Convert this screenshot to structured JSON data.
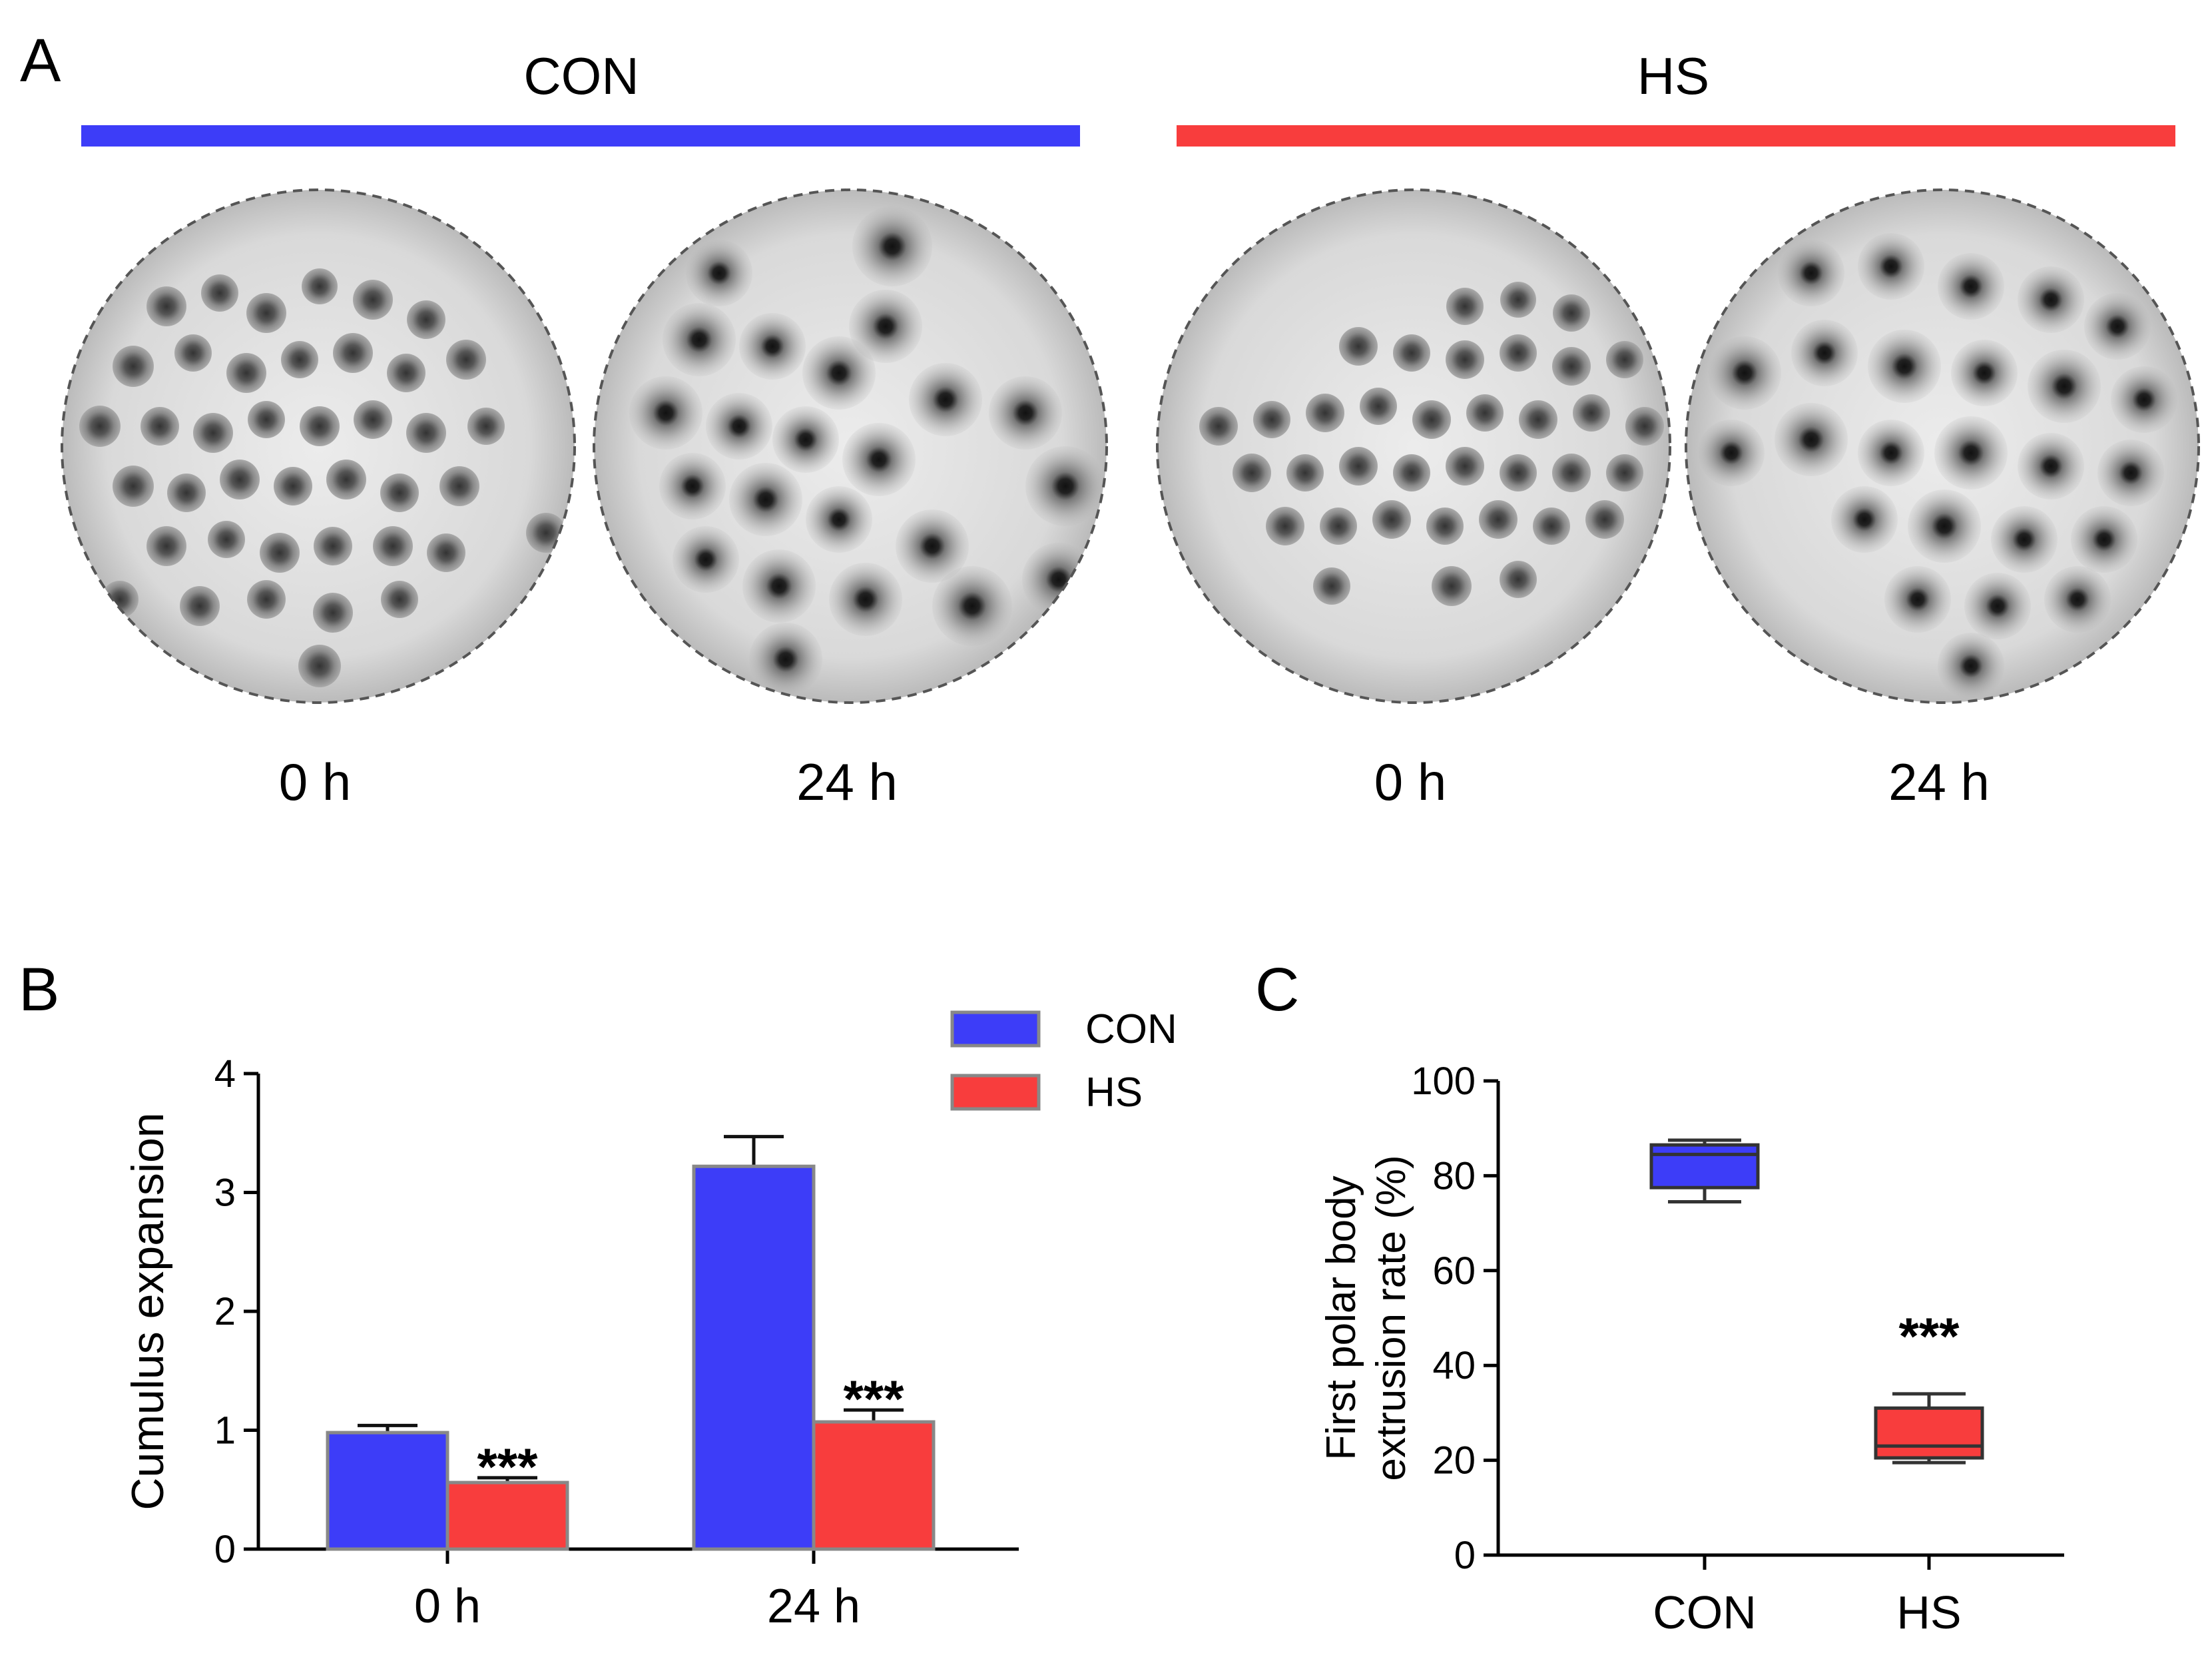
{
  "panelA": {
    "letter": "A",
    "groups": [
      {
        "name": "CON",
        "color": "#3d3df8"
      },
      {
        "name": "HS",
        "color": "#f83d3d"
      }
    ],
    "time_labels": [
      "0 h",
      "24 h",
      "0 h",
      "24 h"
    ]
  },
  "chart_data": [
    {
      "panel": "B",
      "type": "bar",
      "title": "",
      "xlabel": "",
      "ylabel": "Cumulus expansion",
      "categories": [
        "0 h",
        "24 h"
      ],
      "ylim": [
        0,
        4
      ],
      "yticks": [
        "0",
        "1",
        "2",
        "3",
        "4"
      ],
      "series": [
        {
          "name": "CON",
          "color": "#3d3df8",
          "values": [
            0.98,
            3.22
          ],
          "errors": [
            0.06,
            0.25
          ]
        },
        {
          "name": "HS",
          "color": "#f83d3d",
          "values": [
            0.56,
            1.07
          ],
          "errors": [
            0.04,
            0.1
          ]
        }
      ],
      "annotations": [
        "***",
        "***"
      ],
      "legend": "top-right"
    },
    {
      "panel": "C",
      "type": "box",
      "title": "",
      "xlabel": "",
      "ylabel_lines": [
        "First polar body",
        "extrusion rate (%)"
      ],
      "categories": [
        "CON",
        "HS"
      ],
      "ylim": [
        0,
        100
      ],
      "yticks": [
        "0",
        "20",
        "40",
        "60",
        "80",
        "100"
      ],
      "boxes": [
        {
          "name": "CON",
          "color": "#3d3df8",
          "min": 74.5,
          "q1": 77.5,
          "median": 84.5,
          "q3": 86.5,
          "max": 87.5
        },
        {
          "name": "HS",
          "color": "#f83d3d",
          "min": 19.5,
          "q1": 20.5,
          "median": 23.0,
          "q3": 31.0,
          "max": 34.0
        }
      ],
      "annotations": [
        "***"
      ]
    }
  ]
}
